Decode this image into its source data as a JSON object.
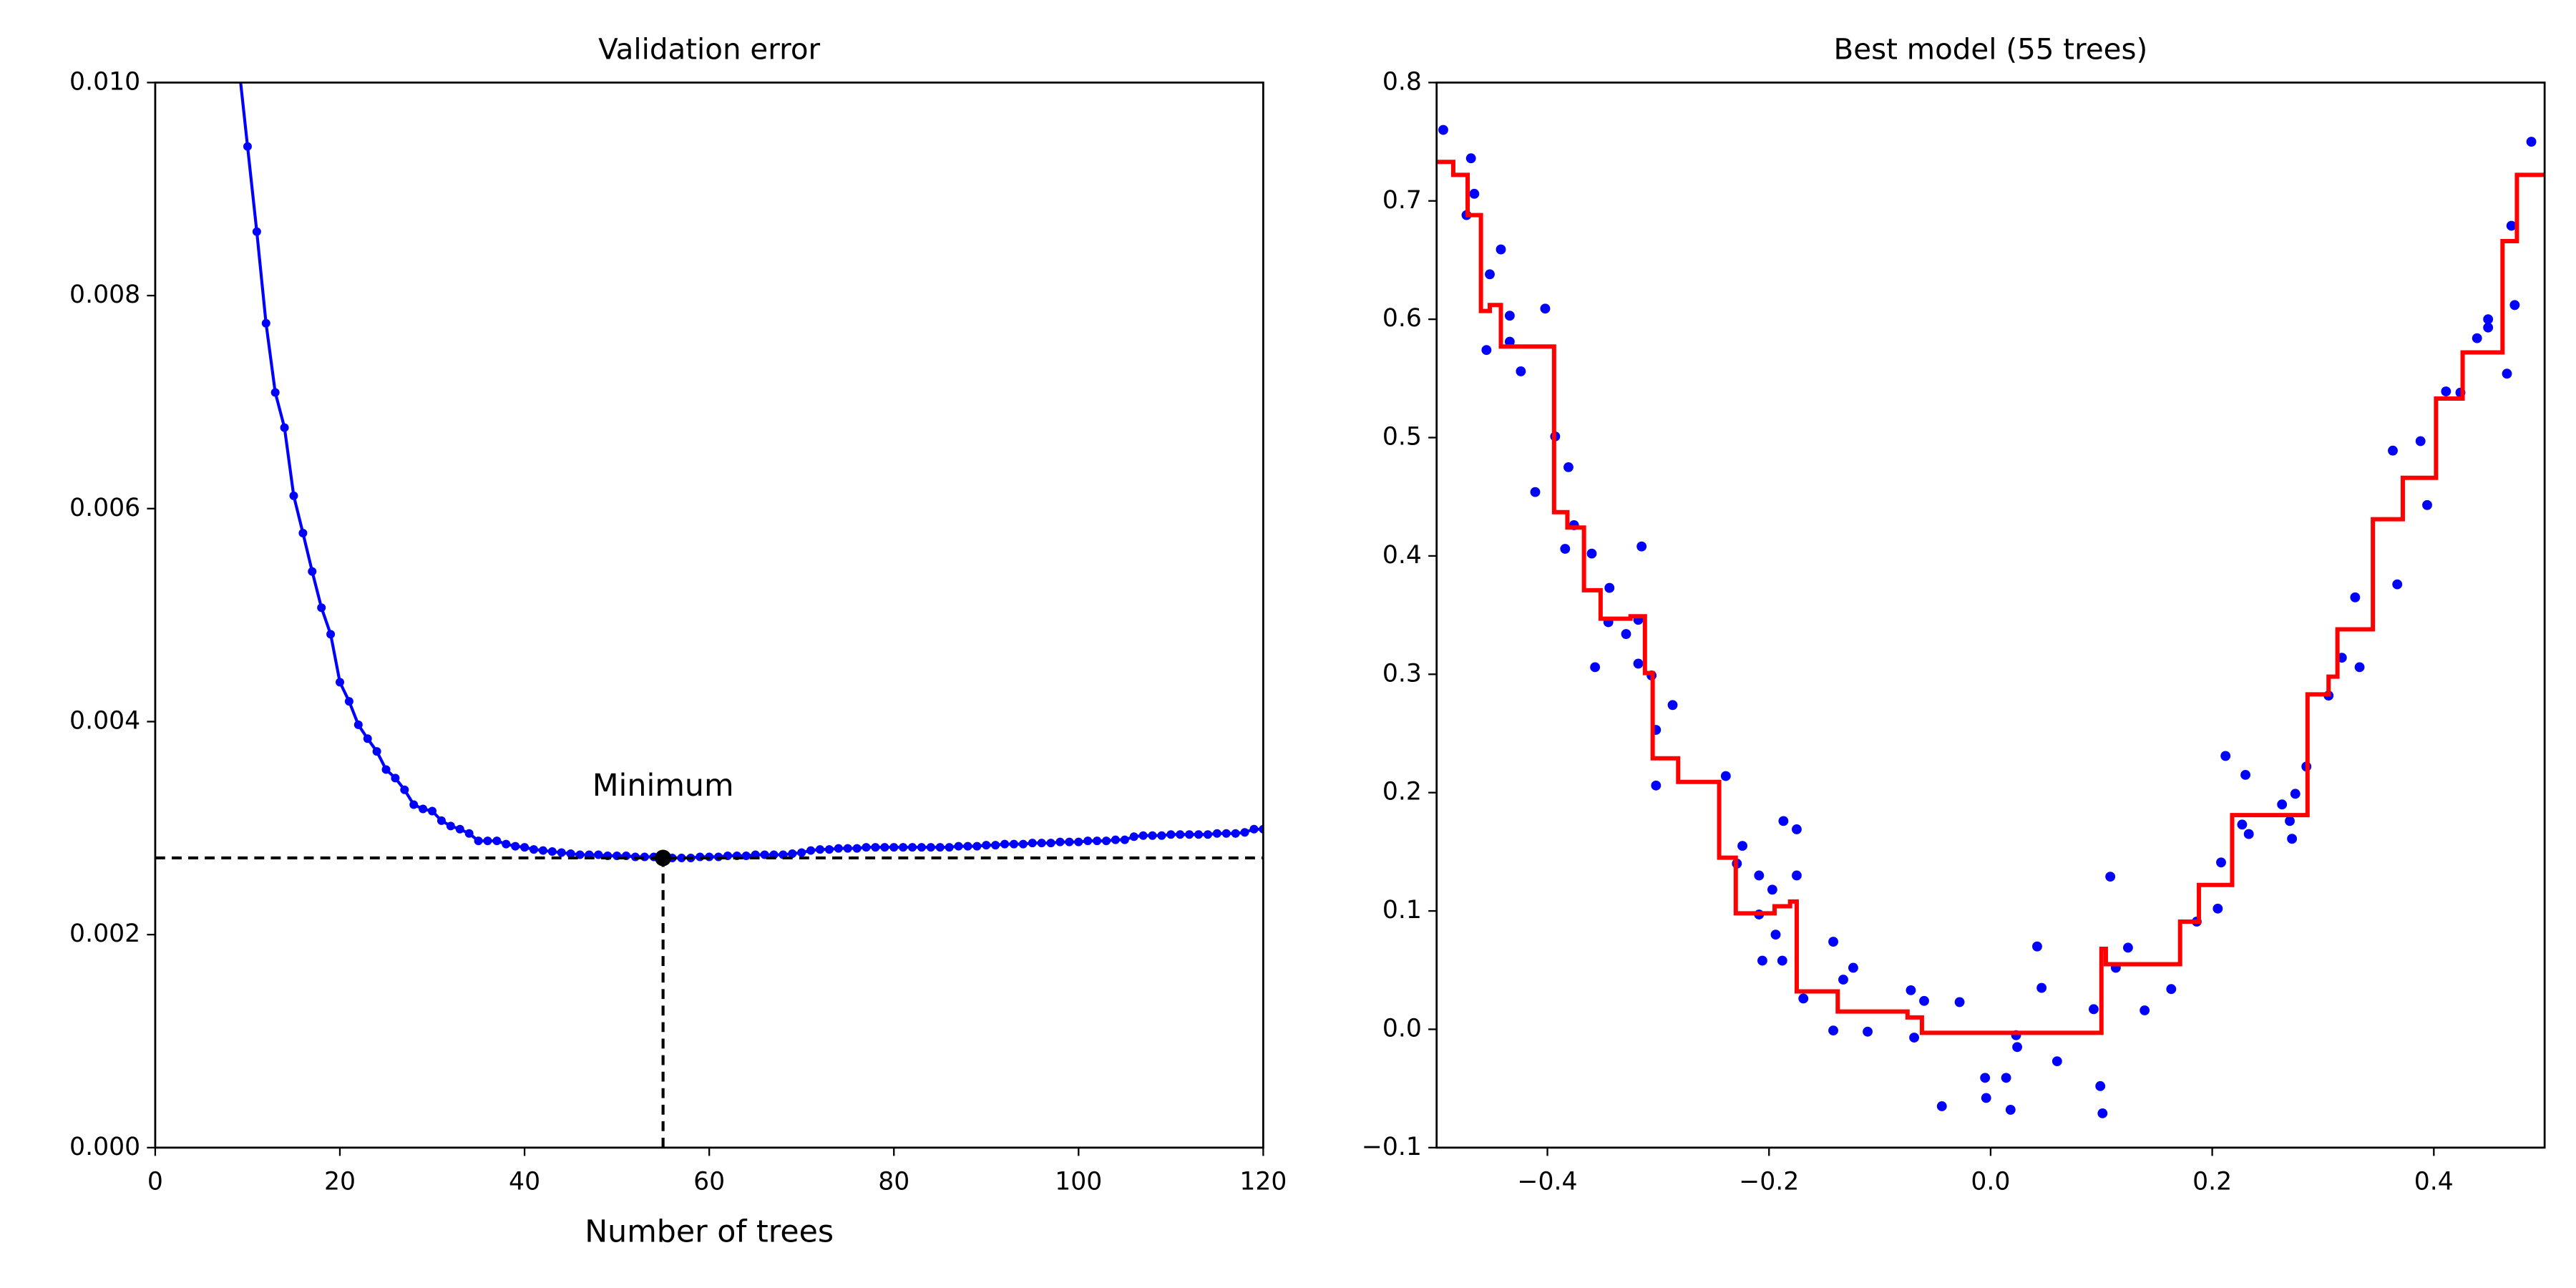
{
  "chart_data": [
    {
      "type": "line",
      "title": "Validation error",
      "xlabel": "Number of trees",
      "x": [
        9,
        10,
        11,
        12,
        13,
        14,
        15,
        16,
        17,
        18,
        19,
        20,
        21,
        22,
        23,
        24,
        25,
        26,
        27,
        28,
        29,
        30,
        31,
        32,
        33,
        34,
        35,
        36,
        37,
        38,
        39,
        40,
        41,
        42,
        43,
        44,
        45,
        46,
        47,
        48,
        49,
        50,
        51,
        52,
        53,
        54,
        55,
        56,
        57,
        58,
        59,
        60,
        61,
        62,
        63,
        64,
        65,
        66,
        67,
        68,
        69,
        70,
        71,
        72,
        73,
        74,
        75,
        76,
        77,
        78,
        79,
        80,
        81,
        82,
        83,
        84,
        85,
        86,
        87,
        88,
        89,
        90,
        91,
        92,
        93,
        94,
        95,
        96,
        97,
        98,
        99,
        100,
        101,
        102,
        103,
        104,
        105,
        106,
        107,
        108,
        109,
        110,
        111,
        112,
        113,
        114,
        115,
        116,
        117,
        118,
        119,
        120
      ],
      "series": [
        {
          "color": "#0000ff",
          "values": [
            0.0102,
            0.0094,
            0.0086,
            0.00774,
            0.00709,
            0.00676,
            0.00612,
            0.00577,
            0.00541,
            0.00507,
            0.00482,
            0.00437,
            0.00419,
            0.00397,
            0.00384,
            0.00372,
            0.00355,
            0.00347,
            0.00336,
            0.00322,
            0.00318,
            0.00316,
            0.00307,
            0.00302,
            0.00299,
            0.00295,
            0.00288,
            0.00288,
            0.00288,
            0.00285,
            0.00283,
            0.00282,
            0.0028,
            0.00279,
            0.00278,
            0.00277,
            0.00276,
            0.00275,
            0.00275,
            0.00275,
            0.00274,
            0.00274,
            0.00274,
            0.00273,
            0.00273,
            0.00273,
            0.00272,
            0.00272,
            0.00272,
            0.00272,
            0.00273,
            0.00273,
            0.00273,
            0.00274,
            0.00274,
            0.00274,
            0.00275,
            0.00275,
            0.00275,
            0.00275,
            0.00276,
            0.00277,
            0.00279,
            0.0028,
            0.0028,
            0.00281,
            0.00281,
            0.00281,
            0.00282,
            0.00282,
            0.00282,
            0.00282,
            0.00282,
            0.00282,
            0.00282,
            0.00282,
            0.00282,
            0.00282,
            0.00283,
            0.00283,
            0.00283,
            0.00284,
            0.00284,
            0.00285,
            0.00285,
            0.00285,
            0.00286,
            0.00286,
            0.00286,
            0.00287,
            0.00287,
            0.00287,
            0.00288,
            0.00288,
            0.00288,
            0.00289,
            0.00289,
            0.00292,
            0.00293,
            0.00293,
            0.00293,
            0.00294,
            0.00294,
            0.00294,
            0.00294,
            0.00294,
            0.00295,
            0.00295,
            0.00295,
            0.00296,
            0.00299,
            0.00299
          ]
        }
      ],
      "minimum": {
        "x": 55,
        "y": 0.00272,
        "color": "#000000"
      },
      "annotation": {
        "text": "Minimum",
        "x": 55,
        "y": 0.00338
      },
      "xlim": [
        0,
        120
      ],
      "ylim": [
        0,
        0.01
      ],
      "xticks": [
        0,
        20,
        40,
        60,
        80,
        100,
        120
      ],
      "yticks": [
        {
          "value": 0,
          "label": "0.000"
        },
        {
          "value": 0.002,
          "label": "0.002"
        },
        {
          "value": 0.004,
          "label": "0.004"
        },
        {
          "value": 0.006,
          "label": "0.006"
        },
        {
          "value": 0.008,
          "label": "0.008"
        },
        {
          "value": 0.01,
          "label": "0.010"
        }
      ]
    },
    {
      "type": "scatter",
      "title": "Best model (55 trees)",
      "series": [
        {
          "color": "#0000ff",
          "x": [
            -0.494,
            -0.469,
            -0.473,
            -0.466,
            -0.452,
            -0.442,
            -0.455,
            -0.434,
            -0.434,
            -0.424,
            -0.402,
            -0.411,
            -0.393,
            -0.381,
            -0.384,
            -0.376,
            -0.36,
            -0.357,
            -0.344,
            -0.345,
            -0.329,
            -0.318,
            -0.315,
            -0.318,
            -0.306,
            -0.302,
            -0.287,
            -0.302,
            -0.239,
            -0.224,
            -0.229,
            -0.209,
            -0.197,
            -0.209,
            -0.194,
            -0.206,
            -0.188,
            -0.187,
            -0.175,
            -0.175,
            -0.169,
            -0.142,
            -0.133,
            -0.124,
            -0.142,
            -0.111,
            -0.072,
            -0.06,
            -0.069,
            -0.028,
            -0.044,
            -0.005,
            -0.004,
            0.014,
            0.018,
            0.023,
            0.024,
            0.042,
            0.046,
            0.06,
            0.093,
            0.099,
            0.101,
            0.108,
            0.113,
            0.124,
            0.139,
            0.163,
            0.186,
            0.205,
            0.208,
            0.212,
            0.23,
            0.227,
            0.233,
            0.263,
            0.27,
            0.272,
            0.275,
            0.285,
            0.305,
            0.317,
            0.329,
            0.333,
            0.363,
            0.367,
            0.388,
            0.394,
            0.411,
            0.424,
            0.439,
            0.449,
            0.449,
            0.466,
            0.47,
            0.473,
            0.488
          ],
          "values": [
            0.76,
            0.736,
            0.688,
            0.706,
            0.638,
            0.659,
            0.574,
            0.603,
            0.581,
            0.556,
            0.609,
            0.454,
            0.501,
            0.475,
            0.406,
            0.426,
            0.402,
            0.306,
            0.373,
            0.344,
            0.334,
            0.346,
            0.408,
            0.309,
            0.299,
            0.253,
            0.274,
            0.206,
            0.214,
            0.155,
            0.14,
            0.13,
            0.118,
            0.097,
            0.08,
            0.058,
            0.058,
            0.176,
            0.169,
            0.13,
            0.026,
            0.074,
            0.042,
            0.052,
            -0.001,
            -0.002,
            0.033,
            0.024,
            -0.007,
            0.023,
            -0.065,
            -0.041,
            -0.058,
            -0.041,
            -0.068,
            -0.005,
            -0.015,
            0.07,
            0.035,
            -0.027,
            0.017,
            -0.048,
            -0.071,
            0.129,
            0.052,
            0.069,
            0.016,
            0.034,
            0.091,
            0.102,
            0.141,
            0.231,
            0.215,
            0.173,
            0.165,
            0.19,
            0.176,
            0.161,
            0.199,
            0.222,
            0.282,
            0.314,
            0.365,
            0.306,
            0.489,
            0.376,
            0.497,
            0.443,
            0.539,
            0.538,
            0.584,
            0.6,
            0.593,
            0.554,
            0.679,
            0.612,
            0.75
          ]
        },
        {
          "color": "#ff0000",
          "step": "post",
          "x": [
            -0.5,
            -0.485,
            -0.472,
            -0.46,
            -0.452,
            -0.442,
            -0.394,
            -0.382,
            -0.367,
            -0.352,
            -0.325,
            -0.312,
            -0.305,
            -0.282,
            -0.245,
            -0.23,
            -0.195,
            -0.181,
            -0.175,
            -0.138,
            -0.075,
            -0.062,
            0.1,
            0.104,
            0.171,
            0.188,
            0.218,
            0.286,
            0.305,
            0.313,
            0.345,
            0.372,
            0.402,
            0.426,
            0.462,
            0.475
          ],
          "values": [
            0.733,
            0.722,
            0.688,
            0.607,
            0.612,
            0.577,
            0.437,
            0.424,
            0.371,
            0.347,
            0.349,
            0.301,
            0.229,
            0.209,
            0.145,
            0.098,
            0.104,
            0.108,
            0.032,
            0.015,
            0.01,
            -0.003,
            0.068,
            0.055,
            0.091,
            0.122,
            0.181,
            0.283,
            0.298,
            0.338,
            0.431,
            0.466,
            0.533,
            0.572,
            0.666,
            0.722
          ]
        }
      ],
      "xlim": [
        -0.5,
        0.5
      ],
      "ylim": [
        -0.1,
        0.8
      ],
      "xticks": [
        {
          "value": -0.4,
          "label": "−0.4"
        },
        {
          "value": -0.2,
          "label": "−0.2"
        },
        {
          "value": 0,
          "label": "0.0"
        },
        0.2,
        0.4
      ],
      "yticks": [
        {
          "value": -0.1,
          "label": "−0.1"
        },
        {
          "value": 0,
          "label": "0.0"
        },
        0.1,
        0.2,
        0.3,
        0.4,
        0.5,
        0.6,
        0.7,
        0.8
      ]
    }
  ]
}
